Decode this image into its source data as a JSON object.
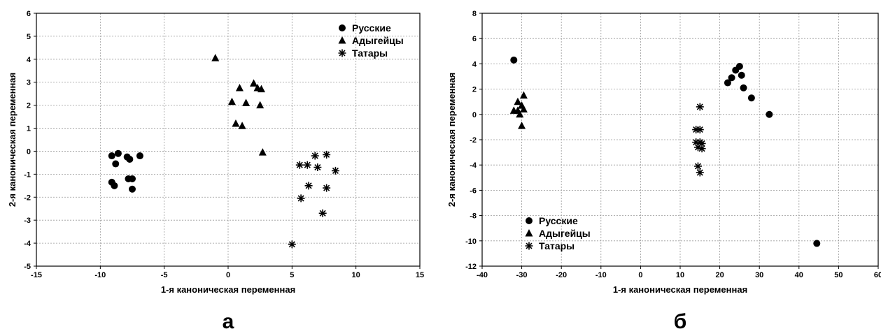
{
  "chart_data": [
    {
      "type": "scatter",
      "panel_label": "а",
      "xlabel": "1-я каноническая переменная",
      "ylabel": "2-я каноническая переменная",
      "xlim": [
        -15,
        15
      ],
      "ylim": [
        -5,
        6
      ],
      "xticks": [
        "-15",
        "-10",
        "-5",
        "0",
        "5",
        "10",
        "15"
      ],
      "yticks": [
        "-5",
        "-4",
        "-3",
        "-2",
        "-1",
        "0",
        "1",
        "2",
        "3",
        "4",
        "5",
        "6"
      ],
      "grid": true,
      "legend_position": "top-right",
      "series": [
        {
          "name": "Русские",
          "marker": "circle",
          "points": [
            [
              -9.1,
              -0.2
            ],
            [
              -8.6,
              -0.1
            ],
            [
              -8.8,
              -0.55
            ],
            [
              -7.9,
              -0.25
            ],
            [
              -7.7,
              -0.35
            ],
            [
              -6.9,
              -0.2
            ],
            [
              -9.1,
              -1.35
            ],
            [
              -8.9,
              -1.5
            ],
            [
              -7.8,
              -1.2
            ],
            [
              -7.5,
              -1.2
            ],
            [
              -7.5,
              -1.65
            ]
          ]
        },
        {
          "name": "Адыгейцы",
          "marker": "triangle",
          "points": [
            [
              -1.0,
              4.05
            ],
            [
              2.0,
              2.95
            ],
            [
              0.9,
              2.75
            ],
            [
              2.3,
              2.75
            ],
            [
              2.6,
              2.7
            ],
            [
              0.3,
              2.15
            ],
            [
              1.4,
              2.1
            ],
            [
              2.5,
              2.0
            ],
            [
              0.6,
              1.2
            ],
            [
              1.1,
              1.1
            ],
            [
              2.7,
              -0.05
            ]
          ]
        },
        {
          "name": "Татары",
          "marker": "asterisk",
          "points": [
            [
              6.8,
              -0.2
            ],
            [
              7.7,
              -0.15
            ],
            [
              5.6,
              -0.6
            ],
            [
              6.2,
              -0.6
            ],
            [
              7.0,
              -0.7
            ],
            [
              8.4,
              -0.85
            ],
            [
              6.3,
              -1.5
            ],
            [
              7.7,
              -1.6
            ],
            [
              5.7,
              -2.05
            ],
            [
              7.4,
              -2.7
            ],
            [
              5.0,
              -4.05
            ]
          ]
        }
      ]
    },
    {
      "type": "scatter",
      "panel_label": "б",
      "xlabel": "1-я каноническая переменная",
      "ylabel": "2-я каноническая переменная",
      "xlim": [
        -40,
        60
      ],
      "ylim": [
        -12,
        8
      ],
      "xticks": [
        "-40",
        "-30",
        "-20",
        "-10",
        "0",
        "10",
        "20",
        "30",
        "40",
        "50",
        "60"
      ],
      "yticks": [
        "-12",
        "-10",
        "-8",
        "-6",
        "-4",
        "-2",
        "0",
        "2",
        "4",
        "6",
        "8"
      ],
      "grid": true,
      "legend_position": "bottom-left",
      "series": [
        {
          "name": "Русские",
          "marker": "circle",
          "points": [
            [
              -32,
              4.3
            ],
            [
              25,
              3.8
            ],
            [
              24,
              3.5
            ],
            [
              23,
              2.9
            ],
            [
              25.5,
              3.1
            ],
            [
              22,
              2.5
            ],
            [
              26,
              2.1
            ],
            [
              28,
              1.3
            ],
            [
              32.5,
              0.0
            ],
            [
              44.5,
              -10.2
            ]
          ]
        },
        {
          "name": "Адыгейцы",
          "marker": "triangle",
          "points": [
            [
              -29.5,
              1.5
            ],
            [
              -31,
              1.0
            ],
            [
              -30,
              0.7
            ],
            [
              -32,
              0.3
            ],
            [
              -31,
              0.3
            ],
            [
              -29.5,
              0.4
            ],
            [
              -30.5,
              0.0
            ],
            [
              -30,
              -0.9
            ]
          ]
        },
        {
          "name": "Татары",
          "marker": "asterisk",
          "points": [
            [
              15,
              0.6
            ],
            [
              14,
              -1.2
            ],
            [
              15,
              -1.2
            ],
            [
              14,
              -2.2
            ],
            [
              15,
              -2.2
            ],
            [
              15.5,
              -2.3
            ],
            [
              14.5,
              -2.6
            ],
            [
              15.5,
              -2.7
            ],
            [
              14.5,
              -4.1
            ],
            [
              15,
              -4.6
            ]
          ]
        }
      ]
    }
  ]
}
